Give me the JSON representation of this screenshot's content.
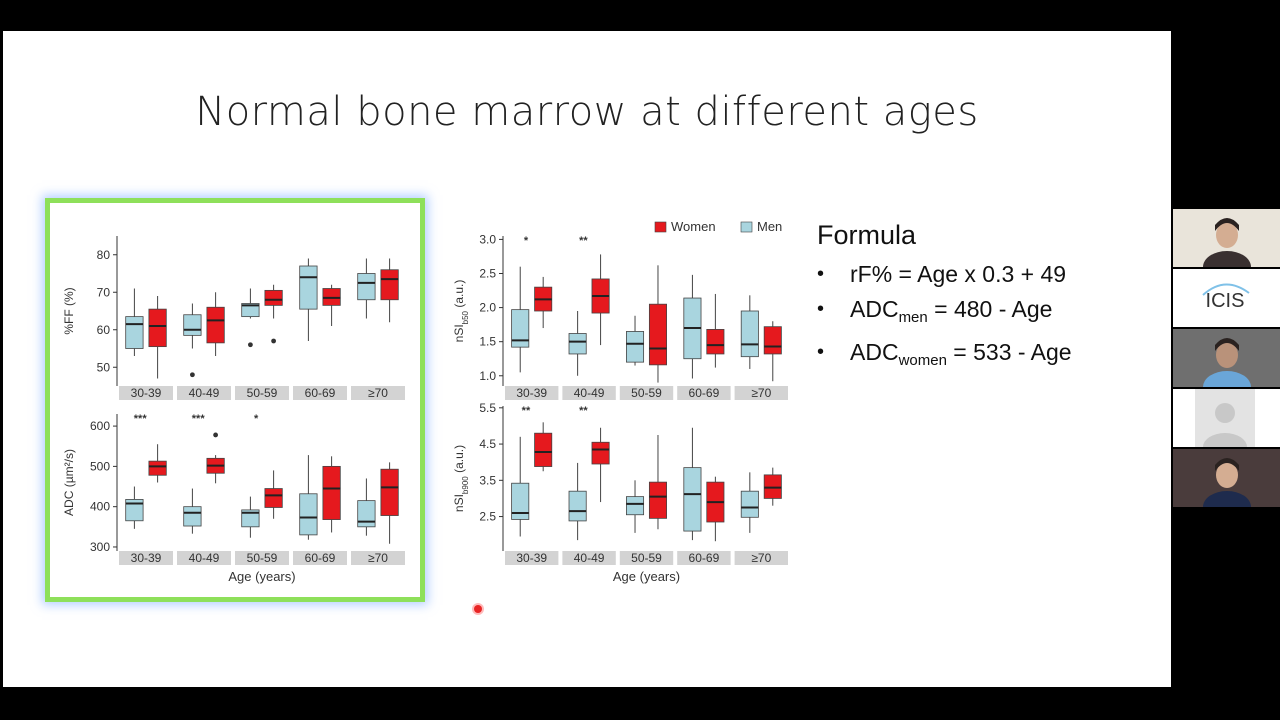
{
  "slide": {
    "title": "Normal bone marrow at different ages",
    "formula": {
      "heading": "Formula",
      "line1": "rF% = Age x 0.3 + 49",
      "line2_prefix": "ADC",
      "line2_sub": "men",
      "line2_rest": " = 480 - Age",
      "line3_prefix": "ADC",
      "line3_sub": "women",
      "line3_rest": " = 533 - Age",
      "bullet": "•"
    }
  },
  "colors": {
    "women": "#e5191e",
    "men": "#a9d5df",
    "strip": "#d3d3d3",
    "highlight": "#8ee05a"
  },
  "legend": {
    "women": "Women",
    "men": "Men"
  },
  "age_groups": [
    "30-39",
    "40-49",
    "50-59",
    "60-69",
    "≥70"
  ],
  "chart_data": [
    {
      "type": "boxplot",
      "id": "ff",
      "ylabel": "%FF (%)",
      "xlabel": "",
      "ylim": [
        45,
        85
      ],
      "yticks": [
        50,
        60,
        70,
        80
      ],
      "categories": [
        "30-39",
        "40-49",
        "50-59",
        "60-69",
        "≥70"
      ],
      "series": [
        {
          "name": "Men",
          "boxes": [
            {
              "min": 53,
              "q1": 55,
              "median": 61.5,
              "q3": 63.5,
              "max": 71,
              "outliers": []
            },
            {
              "min": 55,
              "q1": 58.5,
              "median": 60,
              "q3": 64,
              "max": 67,
              "outliers": [
                48
              ]
            },
            {
              "min": 63,
              "q1": 63.5,
              "median": 66.5,
              "q3": 67,
              "max": 71,
              "outliers": [
                56
              ]
            },
            {
              "min": 57,
              "q1": 65.5,
              "median": 74,
              "q3": 77,
              "max": 79,
              "outliers": []
            },
            {
              "min": 63,
              "q1": 68,
              "median": 72.5,
              "q3": 75,
              "max": 79,
              "outliers": []
            }
          ]
        },
        {
          "name": "Women",
          "boxes": [
            {
              "min": 47,
              "q1": 55.5,
              "median": 61,
              "q3": 65.5,
              "max": 69,
              "outliers": []
            },
            {
              "min": 53,
              "q1": 56.5,
              "median": 62.5,
              "q3": 66,
              "max": 70,
              "outliers": []
            },
            {
              "min": 63,
              "q1": 66.5,
              "median": 68,
              "q3": 70.5,
              "max": 72,
              "outliers": [
                57
              ]
            },
            {
              "min": 61,
              "q1": 66.5,
              "median": 68.5,
              "q3": 71,
              "max": 72,
              "outliers": []
            },
            {
              "min": 62,
              "q1": 68,
              "median": 73.5,
              "q3": 76,
              "max": 79,
              "outliers": []
            }
          ]
        }
      ],
      "significance": [
        "",
        "",
        "",
        "",
        ""
      ]
    },
    {
      "type": "boxplot",
      "id": "adc",
      "ylabel": "ADC (µm²/s)",
      "xlabel": "Age (years)",
      "ylim": [
        290,
        630
      ],
      "yticks": [
        300,
        400,
        500,
        600
      ],
      "categories": [
        "30-39",
        "40-49",
        "50-59",
        "60-69",
        "≥70"
      ],
      "series": [
        {
          "name": "Men",
          "boxes": [
            {
              "min": 345,
              "q1": 365,
              "median": 408,
              "q3": 418,
              "max": 450,
              "outliers": []
            },
            {
              "min": 333,
              "q1": 352,
              "median": 385,
              "q3": 400,
              "max": 445,
              "outliers": []
            },
            {
              "min": 323,
              "q1": 350,
              "median": 385,
              "q3": 392,
              "max": 425,
              "outliers": []
            },
            {
              "min": 318,
              "q1": 330,
              "median": 373,
              "q3": 432,
              "max": 528,
              "outliers": []
            },
            {
              "min": 328,
              "q1": 350,
              "median": 363,
              "q3": 415,
              "max": 470,
              "outliers": []
            }
          ]
        },
        {
          "name": "Women",
          "boxes": [
            {
              "min": 460,
              "q1": 478,
              "median": 500,
              "q3": 513,
              "max": 555,
              "outliers": []
            },
            {
              "min": 458,
              "q1": 483,
              "median": 502,
              "q3": 520,
              "max": 528,
              "outliers": [
                578
              ]
            },
            {
              "min": 370,
              "q1": 398,
              "median": 428,
              "q3": 445,
              "max": 490,
              "outliers": []
            },
            {
              "min": 336,
              "q1": 368,
              "median": 445,
              "q3": 500,
              "max": 525,
              "outliers": []
            },
            {
              "min": 308,
              "q1": 378,
              "median": 448,
              "q3": 493,
              "max": 510,
              "outliers": []
            }
          ]
        }
      ],
      "significance": [
        "***",
        "***",
        "*",
        "",
        ""
      ]
    },
    {
      "type": "boxplot",
      "id": "nsi50",
      "ylabel": "nSI",
      "ylabel_sub": "b50",
      "ylabel_suffix": " (a.u.)",
      "xlabel": "",
      "ylim": [
        0.85,
        3.05
      ],
      "yticks": [
        1.0,
        1.5,
        2.0,
        2.5,
        3.0
      ],
      "categories": [
        "30-39",
        "40-49",
        "50-59",
        "60-69",
        "≥70"
      ],
      "series": [
        {
          "name": "Men",
          "boxes": [
            {
              "min": 1.05,
              "q1": 1.42,
              "median": 1.52,
              "q3": 1.97,
              "max": 2.6,
              "outliers": []
            },
            {
              "min": 1.0,
              "q1": 1.32,
              "median": 1.5,
              "q3": 1.62,
              "max": 1.95,
              "outliers": []
            },
            {
              "min": 1.15,
              "q1": 1.2,
              "median": 1.47,
              "q3": 1.65,
              "max": 1.88,
              "outliers": []
            },
            {
              "min": 0.96,
              "q1": 1.25,
              "median": 1.7,
              "q3": 2.14,
              "max": 2.48,
              "outliers": []
            },
            {
              "min": 1.1,
              "q1": 1.28,
              "median": 1.46,
              "q3": 1.95,
              "max": 2.18,
              "outliers": []
            }
          ]
        },
        {
          "name": "Women",
          "boxes": [
            {
              "min": 1.7,
              "q1": 1.95,
              "median": 2.12,
              "q3": 2.3,
              "max": 2.45,
              "outliers": []
            },
            {
              "min": 1.45,
              "q1": 1.92,
              "median": 2.17,
              "q3": 2.42,
              "max": 2.78,
              "outliers": []
            },
            {
              "min": 0.9,
              "q1": 1.16,
              "median": 1.4,
              "q3": 2.05,
              "max": 2.62,
              "outliers": []
            },
            {
              "min": 1.12,
              "q1": 1.32,
              "median": 1.45,
              "q3": 1.68,
              "max": 2.2,
              "outliers": []
            },
            {
              "min": 0.92,
              "q1": 1.32,
              "median": 1.43,
              "q3": 1.72,
              "max": 1.8,
              "outliers": []
            }
          ]
        }
      ],
      "significance": [
        "*",
        "**",
        "",
        "",
        ""
      ]
    },
    {
      "type": "boxplot",
      "id": "nsi900",
      "ylabel": "nSI",
      "ylabel_sub": "b900",
      "ylabel_suffix": " (a.u.)",
      "xlabel": "Age (years)",
      "ylim": [
        1.55,
        5.55
      ],
      "yticks": [
        2.5,
        3.5,
        4.5,
        5.5
      ],
      "categories": [
        "30-39",
        "40-49",
        "50-59",
        "60-69",
        "≥70"
      ],
      "series": [
        {
          "name": "Men",
          "boxes": [
            {
              "min": 1.95,
              "q1": 2.42,
              "median": 2.6,
              "q3": 3.42,
              "max": 4.7,
              "outliers": []
            },
            {
              "min": 1.85,
              "q1": 2.38,
              "median": 2.65,
              "q3": 3.2,
              "max": 3.98,
              "outliers": []
            },
            {
              "min": 2.05,
              "q1": 2.55,
              "median": 2.85,
              "q3": 3.05,
              "max": 3.5,
              "outliers": []
            },
            {
              "min": 1.85,
              "q1": 2.1,
              "median": 3.12,
              "q3": 3.85,
              "max": 4.95,
              "outliers": []
            },
            {
              "min": 2.05,
              "q1": 2.48,
              "median": 2.75,
              "q3": 3.2,
              "max": 3.72,
              "outliers": []
            }
          ]
        },
        {
          "name": "Women",
          "boxes": [
            {
              "min": 3.75,
              "q1": 3.88,
              "median": 4.28,
              "q3": 4.8,
              "max": 5.1,
              "outliers": []
            },
            {
              "min": 2.9,
              "q1": 3.95,
              "median": 4.35,
              "q3": 4.55,
              "max": 4.95,
              "outliers": []
            },
            {
              "min": 2.15,
              "q1": 2.45,
              "median": 3.05,
              "q3": 3.45,
              "max": 4.75,
              "outliers": []
            },
            {
              "min": 1.82,
              "q1": 2.35,
              "median": 2.9,
              "q3": 3.45,
              "max": 3.6,
              "outliers": []
            },
            {
              "min": 2.8,
              "q1": 3.0,
              "median": 3.3,
              "q3": 3.65,
              "max": 3.85,
              "outliers": []
            }
          ]
        }
      ],
      "significance": [
        "**",
        "**",
        "",
        "",
        ""
      ]
    }
  ],
  "participants": [
    {
      "name": "participant-1",
      "bg": "#e9e4da",
      "kind": "person"
    },
    {
      "name": "participant-icis",
      "bg": "#ffffff",
      "kind": "logo",
      "logo_text": "ICIS"
    },
    {
      "name": "participant-3",
      "bg": "#6f6f6f",
      "kind": "person"
    },
    {
      "name": "participant-4",
      "bg": "#ffffff",
      "kind": "avatar"
    },
    {
      "name": "participant-5",
      "bg": "#4a3c3c",
      "kind": "person"
    }
  ]
}
